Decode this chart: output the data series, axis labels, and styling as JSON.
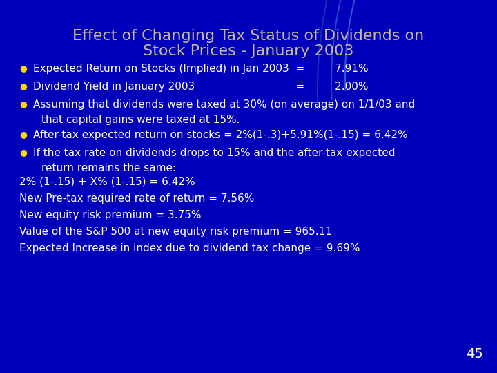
{
  "title_line1": "Effect of Changing Tax Status of Dividends on",
  "title_line2": "Stock Prices - January 2003",
  "title_color": "#C8B89A",
  "title_fontsize": 16,
  "bg_color": "#0000BB",
  "bullet_color": "#FFD700",
  "text_color": "#FFFFFF",
  "bullet1": "Expected Return on Stocks (Implied) in Jan 2003  =         7.91%",
  "bullet2": "Dividend Yield in January 2003                              =         2.00%",
  "bullet3a": "Assuming that dividends were taxed at 30% (on average) on 1/1/03 and",
  "bullet3b": "that capital gains were taxed at 15%.",
  "bullet4": "After-tax expected return on stocks = 2%(1-.3)+5.91%(1-.15) = 6.42%",
  "bullet5a": "If the tax rate on dividends drops to 15% and the after-tax expected",
  "bullet5b": "return remains the same:",
  "body_lines": [
    "2% (1-.15) + X% (1-.15) = 6.42%",
    "New Pre-tax required rate of return = 7.56%",
    "New equity risk premium = 3.75%",
    "Value of the S&P 500 at new equity risk premium = 965.11",
    "Expected Increase in index due to dividend tax change = 9.69%"
  ],
  "slide_number": "45",
  "arc_color1": "#3355DD",
  "arc_color2": "#2244CC",
  "arc_color3": "#1133BB"
}
